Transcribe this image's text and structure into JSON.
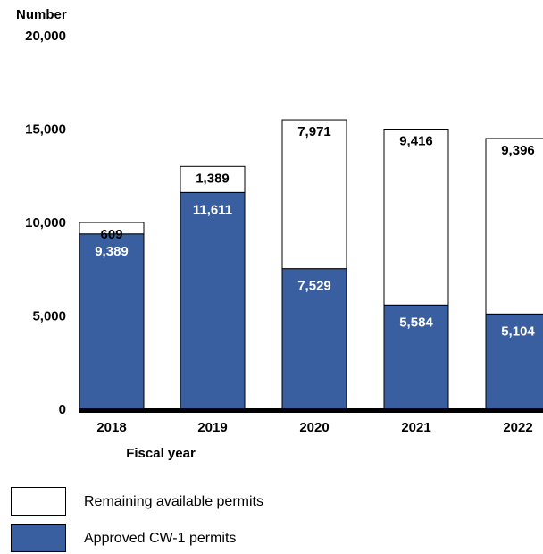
{
  "colors": {
    "approved": "#3a5fa0",
    "remaining": "#ffffff",
    "axis": "#000000"
  },
  "chart_data": {
    "type": "bar",
    "stacked": true,
    "title": "Number",
    "xlabel": "Fiscal year",
    "ylabel": "Number",
    "ylim": [
      0,
      20000
    ],
    "yticks": [
      "0",
      "5,000",
      "10,000",
      "15,000",
      "20,000"
    ],
    "ytick_values": [
      0,
      5000,
      10000,
      15000,
      20000
    ],
    "categories": [
      "2018",
      "2019",
      "2020",
      "2021",
      "2022"
    ],
    "series": [
      {
        "name": "Approved CW-1 permits",
        "values": [
          9389,
          11611,
          7529,
          5584,
          5104
        ],
        "labels": [
          "9,389",
          "11,611",
          "7,529",
          "5,584",
          "5,104"
        ]
      },
      {
        "name": "Remaining available permits",
        "values": [
          609,
          1389,
          7971,
          9416,
          9396
        ],
        "labels": [
          "609",
          "1,389",
          "7,971",
          "9,416",
          "9,396"
        ]
      }
    ],
    "legend_position": "bottom-left",
    "grid": false
  }
}
